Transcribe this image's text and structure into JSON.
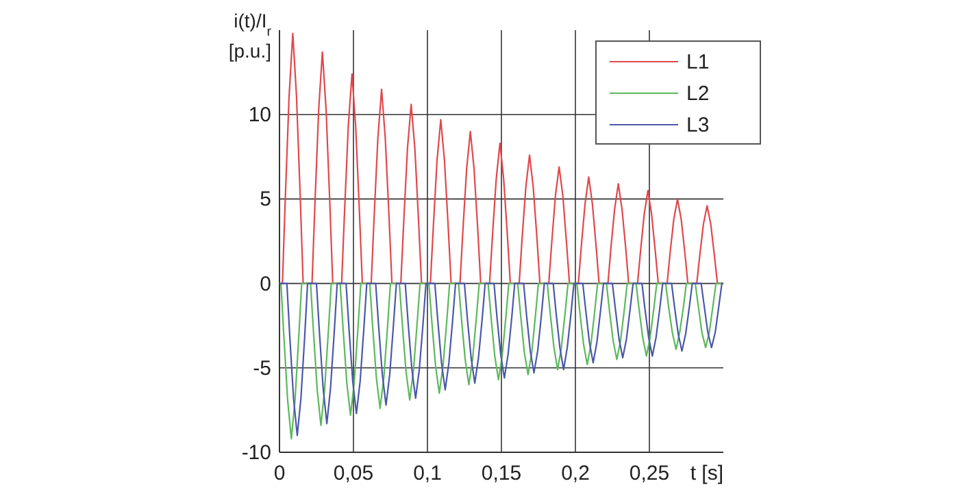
{
  "chart_data": {
    "type": "line",
    "xlabel": "t [s]",
    "ylabel": "i(t)/I$_{r}$\n[p.u.]",
    "xlim": [
      0,
      0.3
    ],
    "ylim": [
      -10,
      15
    ],
    "xticks": [
      0,
      {
        "value": 0.05,
        "label": "0,05"
      },
      {
        "value": 0.1,
        "label": "0,1"
      },
      {
        "value": 0.15,
        "label": "0,15"
      },
      {
        "value": 0.2,
        "label": "0,2"
      },
      {
        "value": 0.25,
        "label": "0,25"
      }
    ],
    "yticks": [
      -10,
      -5,
      0,
      5,
      10
    ],
    "grid": true,
    "legend": "top right",
    "line_style": "solid",
    "marker": "none",
    "series": [
      {
        "name": "L1",
        "color": "#e0474c",
        "x": [
          0,
          0.002,
          0.004,
          0.0065,
          0.009,
          0.0115,
          0.014,
          0.016,
          0.022,
          0.024,
          0.0265,
          0.029,
          0.0315,
          0.034,
          0.036,
          0.042,
          0.044,
          0.0465,
          0.049,
          0.0515,
          0.054,
          0.056,
          0.062,
          0.064,
          0.0665,
          0.069,
          0.0715,
          0.074,
          0.076,
          0.082,
          0.084,
          0.0865,
          0.089,
          0.0915,
          0.094,
          0.096,
          0.102,
          0.104,
          0.1065,
          0.109,
          0.1115,
          0.114,
          0.116,
          0.122,
          0.124,
          0.1265,
          0.129,
          0.1315,
          0.134,
          0.136,
          0.142,
          0.144,
          0.1465,
          0.149,
          0.1515,
          0.154,
          0.156,
          0.162,
          0.164,
          0.1665,
          0.169,
          0.1715,
          0.174,
          0.176,
          0.182,
          0.184,
          0.1865,
          0.189,
          0.1915,
          0.194,
          0.196,
          0.202,
          0.204,
          0.2065,
          0.209,
          0.2115,
          0.214,
          0.216,
          0.222,
          0.224,
          0.2265,
          0.229,
          0.2315,
          0.234,
          0.236,
          0.242,
          0.244,
          0.2465,
          0.249,
          0.2515,
          0.254,
          0.256,
          0.262,
          0.264,
          0.2665,
          0.269,
          0.2715,
          0.274,
          0.276,
          0.282,
          0.284,
          0.2865,
          0.289,
          0.2915,
          0.294,
          0.296,
          0.3
        ],
        "values": [
          0,
          0,
          5.2,
          11.1,
          14.8,
          11.1,
          5.2,
          0,
          0,
          4.8,
          10.3,
          13.7,
          10.3,
          4.8,
          0,
          0,
          4.3,
          9.3,
          12.4,
          9.3,
          4.3,
          0,
          0,
          4.0,
          8.6,
          11.5,
          8.6,
          4.0,
          0,
          0,
          3.7,
          8.0,
          10.6,
          8.0,
          3.7,
          0,
          0,
          3.4,
          7.3,
          9.7,
          7.3,
          3.4,
          0,
          0,
          3.2,
          6.8,
          9.0,
          6.8,
          3.2,
          0,
          0,
          2.9,
          6.2,
          8.3,
          6.2,
          2.9,
          0,
          0,
          2.7,
          5.7,
          7.6,
          5.7,
          2.7,
          0,
          0,
          2.4,
          5.2,
          6.9,
          5.2,
          2.4,
          0,
          0,
          2.2,
          4.7,
          6.3,
          4.7,
          2.2,
          0,
          0,
          2.1,
          4.4,
          5.9,
          4.4,
          2.1,
          0,
          0,
          1.9,
          4.1,
          5.5,
          4.1,
          1.9,
          0,
          0,
          1.8,
          3.8,
          5.0,
          3.8,
          1.8,
          0,
          0,
          1.6,
          3.5,
          4.6,
          3.5,
          1.6,
          0,
          0
        ]
      },
      {
        "name": "L2",
        "color": "#5cb85c",
        "x": [
          0,
          0.001,
          0.003,
          0.0055,
          0.008,
          0.0105,
          0.013,
          0.015,
          0.021,
          0.023,
          0.0255,
          0.028,
          0.0305,
          0.033,
          0.035,
          0.041,
          0.043,
          0.0455,
          0.048,
          0.0505,
          0.053,
          0.055,
          0.061,
          0.063,
          0.0655,
          0.068,
          0.0705,
          0.073,
          0.075,
          0.081,
          0.083,
          0.0855,
          0.088,
          0.0905,
          0.093,
          0.095,
          0.101,
          0.103,
          0.1055,
          0.108,
          0.1105,
          0.113,
          0.115,
          0.121,
          0.123,
          0.1255,
          0.128,
          0.1305,
          0.133,
          0.135,
          0.141,
          0.143,
          0.1455,
          0.148,
          0.1505,
          0.153,
          0.155,
          0.161,
          0.163,
          0.1655,
          0.168,
          0.1705,
          0.173,
          0.175,
          0.181,
          0.183,
          0.1855,
          0.188,
          0.1905,
          0.193,
          0.195,
          0.201,
          0.203,
          0.2055,
          0.208,
          0.2105,
          0.213,
          0.215,
          0.221,
          0.223,
          0.2255,
          0.228,
          0.2305,
          0.233,
          0.235,
          0.241,
          0.243,
          0.2455,
          0.248,
          0.2505,
          0.253,
          0.255,
          0.261,
          0.263,
          0.2655,
          0.268,
          0.2705,
          0.273,
          0.275,
          0.281,
          0.283,
          0.2855,
          0.288,
          0.2905,
          0.293,
          0.295,
          0.3
        ],
        "values": [
          0,
          0,
          -3.2,
          -6.9,
          -9.2,
          -6.9,
          -3.2,
          0,
          0,
          -2.9,
          -6.3,
          -8.4,
          -6.3,
          -2.9,
          0,
          0,
          -2.7,
          -5.9,
          -7.8,
          -5.9,
          -2.7,
          0,
          0,
          -2.6,
          -5.6,
          -7.4,
          -5.6,
          -2.6,
          0,
          0,
          -2.4,
          -5.2,
          -6.9,
          -5.2,
          -2.4,
          0,
          0,
          -2.3,
          -4.9,
          -6.5,
          -4.9,
          -2.3,
          0,
          0,
          -2.1,
          -4.5,
          -6.0,
          -4.5,
          -2.1,
          0,
          0,
          -2.0,
          -4.3,
          -5.7,
          -4.3,
          -2.0,
          0,
          0,
          -1.9,
          -4.1,
          -5.4,
          -4.1,
          -1.9,
          0,
          0,
          -1.8,
          -3.8,
          -5.1,
          -3.8,
          -1.8,
          0,
          0,
          -1.7,
          -3.6,
          -4.8,
          -3.6,
          -1.7,
          0,
          0,
          -1.6,
          -3.4,
          -4.5,
          -3.4,
          -1.6,
          0,
          0,
          -1.5,
          -3.2,
          -4.3,
          -3.2,
          -1.5,
          0,
          0,
          -1.4,
          -2.9,
          -3.9,
          -2.9,
          -1.4,
          0,
          0,
          -1.3,
          -2.9,
          -3.8,
          -2.9,
          -1.3,
          0,
          0
        ]
      },
      {
        "name": "L3",
        "color": "#4a58a8",
        "x": [
          0,
          0.005,
          0.007,
          0.0095,
          0.012,
          0.0145,
          0.017,
          0.019,
          0.025,
          0.027,
          0.0295,
          0.032,
          0.0345,
          0.037,
          0.039,
          0.045,
          0.047,
          0.0495,
          0.052,
          0.0545,
          0.057,
          0.059,
          0.065,
          0.067,
          0.0695,
          0.072,
          0.0745,
          0.077,
          0.079,
          0.085,
          0.087,
          0.0895,
          0.092,
          0.0945,
          0.097,
          0.099,
          0.105,
          0.107,
          0.1095,
          0.112,
          0.1145,
          0.117,
          0.119,
          0.125,
          0.127,
          0.1295,
          0.132,
          0.1345,
          0.137,
          0.139,
          0.145,
          0.147,
          0.1495,
          0.152,
          0.1545,
          0.157,
          0.159,
          0.165,
          0.167,
          0.1695,
          0.172,
          0.1745,
          0.177,
          0.179,
          0.185,
          0.187,
          0.1895,
          0.192,
          0.1945,
          0.197,
          0.199,
          0.205,
          0.207,
          0.2095,
          0.212,
          0.2145,
          0.217,
          0.219,
          0.225,
          0.227,
          0.2295,
          0.232,
          0.2345,
          0.237,
          0.239,
          0.245,
          0.247,
          0.2495,
          0.252,
          0.2545,
          0.257,
          0.259,
          0.265,
          0.267,
          0.2695,
          0.272,
          0.2745,
          0.277,
          0.279,
          0.285,
          0.287,
          0.2895,
          0.292,
          0.2945,
          0.297,
          0.299,
          0.3
        ],
        "values": [
          0,
          0,
          -3.2,
          -6.8,
          -9.0,
          -6.8,
          -3.2,
          0,
          0,
          -2.9,
          -6.2,
          -8.3,
          -6.2,
          -2.9,
          0,
          0,
          -2.7,
          -5.8,
          -7.7,
          -5.8,
          -2.7,
          0,
          0,
          -2.5,
          -5.4,
          -7.2,
          -5.4,
          -2.5,
          0,
          0,
          -2.4,
          -5.1,
          -6.8,
          -5.1,
          -2.4,
          0,
          0,
          -2.2,
          -4.7,
          -6.3,
          -4.7,
          -2.2,
          0,
          0,
          -2.1,
          -4.4,
          -5.9,
          -4.4,
          -2.1,
          0,
          0,
          -2.0,
          -4.2,
          -5.6,
          -4.2,
          -2.0,
          0,
          0,
          -1.9,
          -4.0,
          -5.3,
          -4.0,
          -1.9,
          0,
          0,
          -1.8,
          -3.8,
          -5.1,
          -3.8,
          -1.8,
          0,
          0,
          -1.6,
          -3.5,
          -4.7,
          -3.5,
          -1.6,
          0,
          0,
          -1.5,
          -3.3,
          -4.4,
          -3.3,
          -1.5,
          0,
          0,
          -1.5,
          -3.2,
          -4.3,
          -3.2,
          -1.5,
          0,
          0,
          -1.4,
          -3.0,
          -4.0,
          -3.0,
          -1.4,
          0,
          0,
          -1.3,
          -2.9,
          -3.8,
          -2.9,
          -1.3,
          0,
          0
        ]
      }
    ]
  }
}
